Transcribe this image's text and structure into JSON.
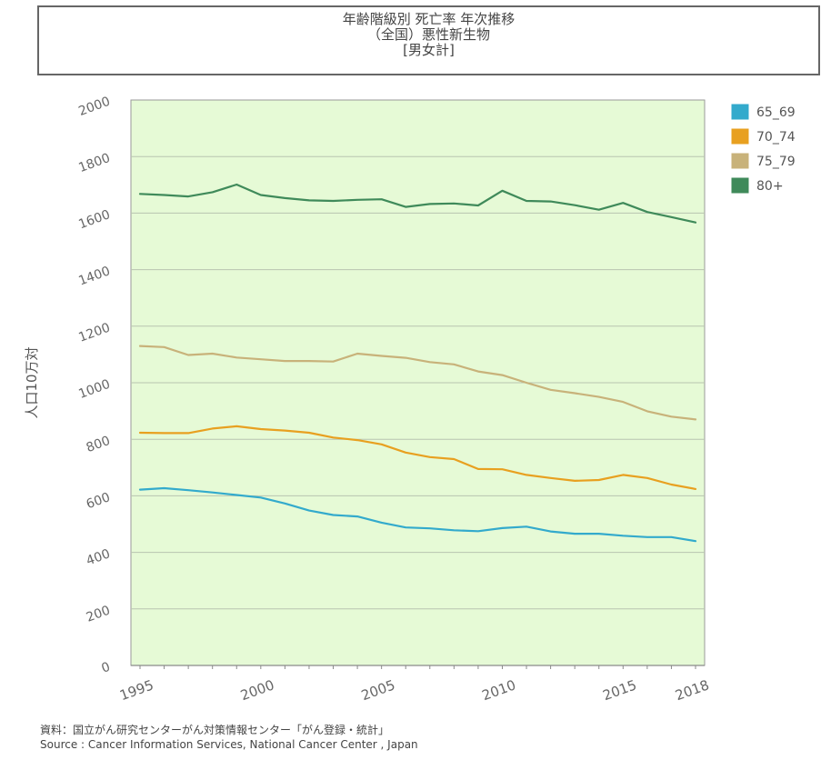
{
  "chart_data": {
    "type": "line",
    "title": [
      "年齢階級別 死亡率 年次推移",
      "（全国）悪性新生物",
      "[男女計]"
    ],
    "ylabel": "人口10万対",
    "ylim": [
      0,
      2000
    ],
    "yticks": [
      0,
      200,
      400,
      600,
      800,
      1000,
      1200,
      1400,
      1600,
      1800,
      2000
    ],
    "xlim": [
      1995,
      2018
    ],
    "xtick_labels": [
      {
        "year": 1995,
        "label": "1995"
      },
      {
        "year": 2000,
        "label": "2000"
      },
      {
        "year": 2005,
        "label": "2005"
      },
      {
        "year": 2010,
        "label": "2010"
      },
      {
        "year": 2015,
        "label": "2015"
      },
      {
        "year": 2018,
        "label": "2018"
      }
    ],
    "grid": true,
    "legend_position": "right",
    "background": "#e6fad6",
    "x": [
      1995,
      1996,
      1997,
      1998,
      1999,
      2000,
      2001,
      2002,
      2003,
      2004,
      2005,
      2006,
      2007,
      2008,
      2009,
      2010,
      2011,
      2012,
      2013,
      2014,
      2015,
      2016,
      2017,
      2018
    ],
    "series": [
      {
        "name": "65_69",
        "color": "#33aacc",
        "values": [
          622,
          627,
          620,
          612,
          603,
          594,
          573,
          548,
          532,
          527,
          505,
          488,
          485,
          478,
          475,
          486,
          491,
          474,
          466,
          466,
          459,
          454,
          454,
          440
        ]
      },
      {
        "name": "70_74",
        "color": "#e8a020",
        "values": [
          823,
          822,
          822,
          838,
          846,
          836,
          831,
          823,
          806,
          797,
          782,
          753,
          737,
          730,
          695,
          694,
          674,
          663,
          653,
          656,
          674,
          663,
          640,
          624
        ]
      },
      {
        "name": "75_79",
        "color": "#c8b27a",
        "values": [
          1130,
          1126,
          1098,
          1103,
          1089,
          1083,
          1077,
          1077,
          1075,
          1103,
          1095,
          1088,
          1073,
          1065,
          1040,
          1027,
          1000,
          975,
          963,
          950,
          932,
          899,
          880,
          870
        ]
      },
      {
        "name": "80+",
        "color": "#3f8a5a",
        "values": [
          1668,
          1664,
          1659,
          1674,
          1701,
          1664,
          1653,
          1645,
          1643,
          1647,
          1649,
          1622,
          1632,
          1634,
          1627,
          1679,
          1643,
          1641,
          1628,
          1612,
          1636,
          1604,
          1586,
          1567
        ]
      }
    ]
  },
  "source": [
    "資料：国立がん研究センターがん対策情報センター「がん登録・統計」",
    "Source : Cancer Information Services, National Cancer Center , Japan"
  ]
}
